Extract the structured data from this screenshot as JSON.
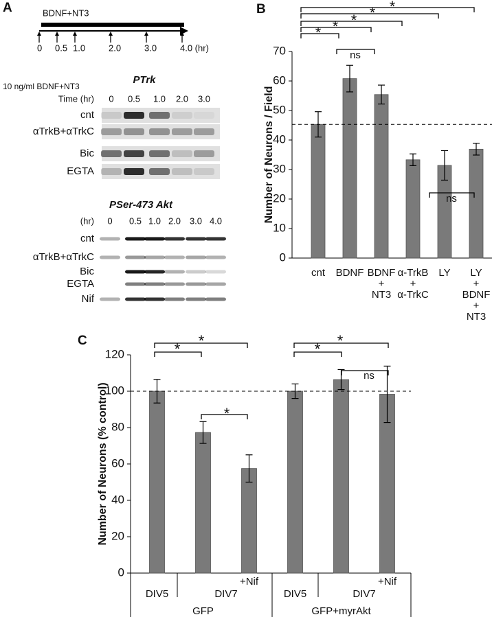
{
  "panel_a": {
    "label": "A",
    "timeline": {
      "label": "BDNF+NT3",
      "ticks": [
        0,
        0.5,
        {
          "value": 1,
          "label": "1.0"
        },
        {
          "value": 2,
          "label": "2.0"
        },
        {
          "value": 3,
          "label": "3.0"
        },
        {
          "value": 4,
          "label": "4.0 (hr)"
        }
      ]
    },
    "blot1": {
      "title": "PTrk",
      "condition": "10 ng/ml BDNF+NT3",
      "time_label": "Time (hr)",
      "times": [
        "0",
        "0.5",
        "1.0",
        "2.0",
        "3.0"
      ],
      "rows": [
        "cnt",
        "αTrkB+αTrkC",
        "Bic",
        "EGTA"
      ]
    },
    "blot2": {
      "title": "PSer-473 Akt",
      "time_label": "(hr)",
      "times": [
        "0",
        "0.5",
        "1.0",
        "2.0",
        "3.0",
        "4.0"
      ],
      "rows": [
        "cnt",
        "αTrkB+αTrkC",
        "Bic",
        "EGTA",
        "Nif"
      ]
    }
  },
  "chart_data": [
    {
      "type": "bar",
      "panel_label": "B",
      "y_label": "Number of Neurons / Field",
      "categories": [
        [
          "cnt"
        ],
        [
          "BDNF"
        ],
        [
          "BDNF",
          "+",
          "NT3"
        ],
        [
          "α-TrkB",
          "+",
          "α-TrkC"
        ],
        [
          "LY"
        ],
        [
          "LY",
          "+",
          "BDNF",
          "+",
          "NT3"
        ]
      ],
      "values": [
        45.3,
        60.8,
        55.4,
        33.3,
        31.4,
        36.9
      ],
      "errors": [
        4.3,
        4.5,
        3.2,
        2.0,
        5.0,
        2.0
      ],
      "color": "#7a7a7a",
      "ylim": [
        0,
        70
      ],
      "yticks": [
        0,
        10,
        20,
        30,
        40,
        50,
        60,
        70
      ],
      "annotations": [
        "*",
        "*",
        "*",
        "*",
        "*",
        "ns",
        "ns"
      ]
    },
    {
      "type": "bar",
      "panel_label": "C",
      "y_label": "Number of Neurons (% control)",
      "categories": [
        "DIV5",
        null,
        "+Nif",
        "DIV5",
        null,
        "+Nif"
      ],
      "spans": [
        "DIV7",
        "DIV7"
      ],
      "groups": [
        "GFP",
        "GFP+myrAkt"
      ],
      "values": [
        100,
        77.3,
        57.5,
        100,
        106.4,
        98.3
      ],
      "errors": [
        6.5,
        6.0,
        7.5,
        4.0,
        5.5,
        15.5
      ],
      "color": "#7a7a7a",
      "ylim": [
        0,
        120
      ],
      "yticks": [
        0,
        20,
        40,
        60,
        80,
        100,
        120
      ],
      "annotations": [
        "*",
        "*",
        "*",
        "*",
        "*",
        "ns"
      ]
    }
  ]
}
